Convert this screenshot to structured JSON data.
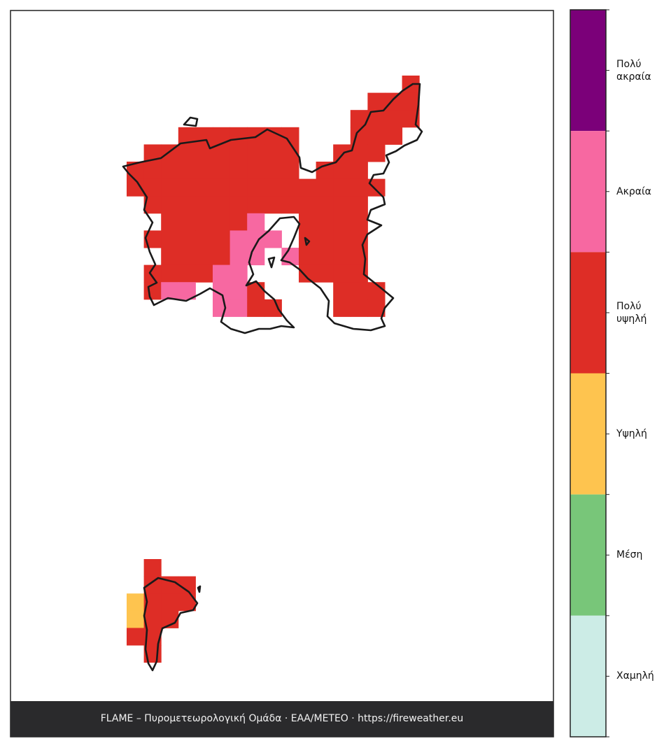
{
  "legend": {
    "levels": [
      {
        "label": "Πολύ ακραία",
        "color": "#7b0079"
      },
      {
        "label": "Ακραία",
        "color": "#f768a1"
      },
      {
        "label": "Πολύ υψηλή",
        "color": "#de2d26"
      },
      {
        "label": "Υψηλή",
        "color": "#fec44f"
      },
      {
        "label": "Μέση",
        "color": "#78c679"
      },
      {
        "label": "Χαμηλή",
        "color": "#ccece6"
      }
    ]
  },
  "footer": {
    "credit": "FLAME – Πυρομετεωρολογική Ομάδα · ΕΑΑ/METEO · https://fireweather.eu"
  }
}
